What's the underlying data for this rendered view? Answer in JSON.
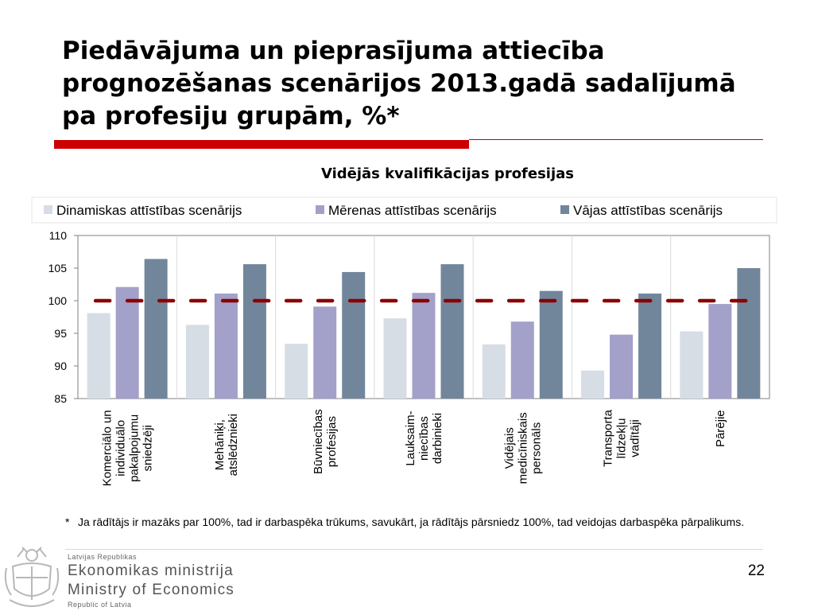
{
  "slide": {
    "title": "Piedāvājuma un pieprasījuma attiecība prognozēšanas scenārijos 2013.gadā sadalījumā pa profesiju grupām, %*",
    "footnote_star": "*",
    "footnote": "Ja rādītājs ir mazāks par 100%, tad ir darbaspēka trūkums, savukārt, ja rādītājs pārsniedz 100%, tad veidojas darbaspēka pārpalikums.",
    "page_number": "22"
  },
  "logo": {
    "line1": "Latvijas Republikas",
    "line2": "Ekonomikas ministrija",
    "line3": "Ministry of Economics",
    "line4": "Republic of Latvia",
    "crest_icon": "latvia-coat-of-arms-icon"
  },
  "colors": {
    "accent_red": "#cc0000",
    "series_light": "#d6dde5",
    "series_mid": "#a3a0c9",
    "series_dark": "#72869b",
    "reference_line": "#8b0000"
  },
  "chart_data": {
    "type": "bar",
    "title": "Vidējās kvalifikācijas profesijas",
    "categories": [
      [
        "Komerciālo un",
        "individuālo",
        "pakalpojumu",
        "sniedzēji"
      ],
      [
        "Mehāniķi,",
        "atslēdznieki"
      ],
      [
        "Būvniecības",
        "profesijas"
      ],
      [
        "Lauksaim-",
        "niecības",
        "darbinieki"
      ],
      [
        "Vidējais",
        "medicīniskais",
        "personāls"
      ],
      [
        "Transporta",
        "līdzekļu",
        "vadītāji"
      ],
      [
        "Pārējie"
      ]
    ],
    "series": [
      {
        "name": "Dinamiskas attīstības scenārijs",
        "color": "#d6dde5",
        "values": [
          98.1,
          96.3,
          93.4,
          97.3,
          93.3,
          89.3,
          95.3
        ]
      },
      {
        "name": "Mērenas attīstības scenārijs",
        "color": "#a3a0c9",
        "values": [
          102.1,
          101.1,
          99.1,
          101.2,
          96.8,
          94.8,
          99.5
        ]
      },
      {
        "name": "Vājas attīstības scenārijs",
        "color": "#72869b",
        "values": [
          106.4,
          105.6,
          104.4,
          105.6,
          101.5,
          101.1,
          105.0
        ]
      }
    ],
    "reference_line": 100,
    "ylim": [
      85,
      110
    ],
    "yticks": [
      85,
      90,
      95,
      100,
      105,
      110
    ],
    "xlabel": "",
    "ylabel": "",
    "legend": "top",
    "grid": "vertical separators"
  }
}
